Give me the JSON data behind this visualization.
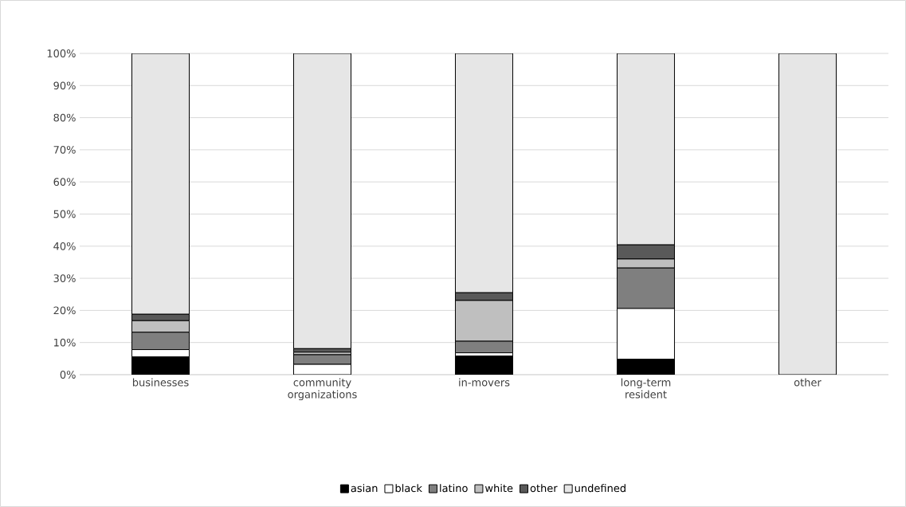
{
  "chart_data": {
    "type": "bar",
    "stacked": true,
    "categories": [
      "businesses",
      "community organizations",
      "in-movers",
      "long-term resident",
      "other"
    ],
    "series": [
      {
        "name": "asian",
        "color": "#000000",
        "values": [
          5.5,
          0,
          5.8,
          4.8,
          0
        ]
      },
      {
        "name": "black",
        "color": "#ffffff",
        "values": [
          2.3,
          3.2,
          1.0,
          15.8,
          0
        ]
      },
      {
        "name": "latino",
        "color": "#7f7f7f",
        "values": [
          5.4,
          3.0,
          3.6,
          12.6,
          0
        ]
      },
      {
        "name": "white",
        "color": "#bfbfbf",
        "values": [
          3.6,
          0.8,
          12.7,
          2.8,
          0
        ]
      },
      {
        "name": "other",
        "color": "#595959",
        "values": [
          2.0,
          1.1,
          2.4,
          4.4,
          0
        ]
      },
      {
        "name": "undefined",
        "color": "#e6e6e6",
        "values": [
          81.2,
          91.9,
          74.5,
          59.6,
          100
        ]
      }
    ],
    "ylim": [
      0,
      100
    ],
    "yticks": [
      {
        "value": 0,
        "label": "0%"
      },
      {
        "value": 10,
        "label": "10%"
      },
      {
        "value": 20,
        "label": "20%"
      },
      {
        "value": 30,
        "label": "30%"
      },
      {
        "value": 40,
        "label": "40%"
      },
      {
        "value": 50,
        "label": "50%"
      },
      {
        "value": 60,
        "label": "60%"
      },
      {
        "value": 70,
        "label": "70%"
      },
      {
        "value": 80,
        "label": "80%"
      },
      {
        "value": 90,
        "label": "90%"
      },
      {
        "value": 100,
        "label": "100%"
      }
    ],
    "grid": "y",
    "legend": "bottom"
  }
}
